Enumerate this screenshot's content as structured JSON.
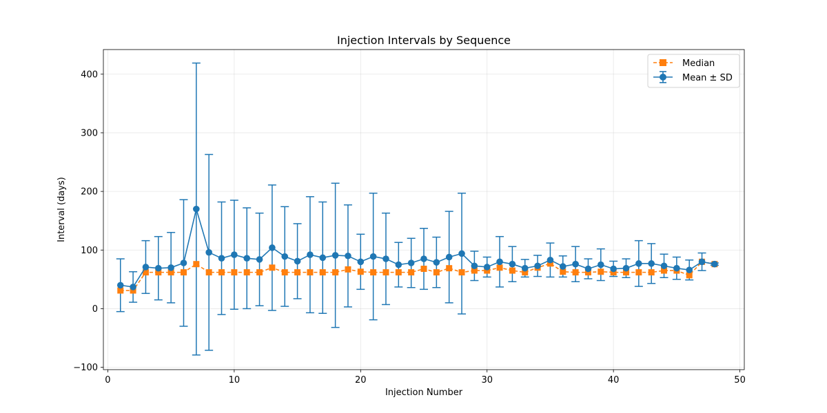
{
  "chart_data": {
    "type": "line",
    "title": "Injection Intervals by Sequence",
    "xlabel": "Injection Number",
    "ylabel": "Interval (days)",
    "xlim": [
      -0.35,
      50.35
    ],
    "ylim": [
      -104,
      442
    ],
    "x_ticks": [
      0,
      10,
      20,
      30,
      40,
      50
    ],
    "y_ticks": [
      -100,
      0,
      100,
      200,
      300,
      400
    ],
    "grid": true,
    "legend_position": "top-right",
    "x": [
      1,
      2,
      3,
      4,
      5,
      6,
      7,
      8,
      9,
      10,
      11,
      12,
      13,
      14,
      15,
      16,
      17,
      18,
      19,
      20,
      21,
      22,
      23,
      24,
      25,
      26,
      27,
      28,
      29,
      30,
      31,
      32,
      33,
      34,
      35,
      36,
      37,
      38,
      39,
      40,
      41,
      42,
      43,
      44,
      45,
      46,
      47,
      48
    ],
    "series": [
      {
        "name": "Median",
        "color": "#ff7f0e",
        "marker": "square",
        "linestyle": "dashed",
        "values": [
          31,
          31,
          62,
          62,
          62,
          62,
          76,
          62,
          62,
          62,
          62,
          62,
          70,
          62,
          62,
          62,
          62,
          62,
          67,
          63,
          62,
          62,
          62,
          62,
          68,
          62,
          69,
          62,
          65,
          65,
          70,
          65,
          62,
          70,
          77,
          63,
          62,
          62,
          63,
          62,
          62,
          62,
          62,
          65,
          65,
          57,
          80,
          76
        ]
      },
      {
        "name": "Mean ± SD",
        "color": "#1f77b4",
        "marker": "circle",
        "linestyle": "solid",
        "values": [
          40,
          37,
          71,
          69,
          70,
          78,
          170,
          96,
          86,
          92,
          86,
          84,
          104,
          89,
          81,
          92,
          87,
          91,
          90,
          80,
          89,
          85,
          75,
          78,
          85,
          79,
          88,
          94,
          73,
          71,
          80,
          76,
          69,
          73,
          83,
          72,
          76,
          68,
          75,
          68,
          69,
          77,
          77,
          73,
          69,
          66,
          80,
          76
        ],
        "sd": [
          45,
          26,
          45,
          54,
          60,
          108,
          249,
          167,
          96,
          93,
          86,
          79,
          107,
          85,
          64,
          99,
          95,
          123,
          87,
          47,
          108,
          78,
          38,
          42,
          52,
          43,
          78,
          103,
          25,
          17,
          43,
          30,
          15,
          18,
          29,
          18,
          30,
          17,
          27,
          13,
          16,
          39,
          34,
          20,
          19,
          17,
          15,
          2
        ]
      }
    ]
  }
}
